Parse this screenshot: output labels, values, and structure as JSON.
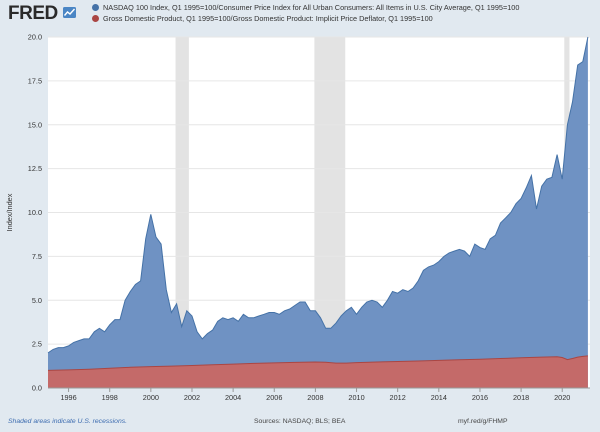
{
  "header": {
    "logo_text": "FRED",
    "logo_mark": "line-chart-icon"
  },
  "legend": [
    {
      "label": "NASDAQ 100 Index, Q1 1995=100/Consumer Price Index for All Urban Consumers: All Items in U.S. City Average, Q1 1995=100",
      "color": "#4572a7"
    },
    {
      "label": "Gross Domestic Product, Q1 1995=100/Gross Domestic Product: Implicit Price Deflator, Q1 1995=100",
      "color": "#aa4643"
    }
  ],
  "footer": {
    "note": "Shaded areas indicate U.S. recessions.",
    "sources": "Sources: NASDAQ; BLS; BEA",
    "url": "myf.red/g/FHMP"
  },
  "chart_data": {
    "type": "area",
    "title": "",
    "xlabel": "",
    "ylabel": "Index/Index",
    "xlim": [
      1995.0,
      2021.35
    ],
    "ylim": [
      0,
      20
    ],
    "yticks": [
      0,
      2.5,
      5,
      7.5,
      10,
      12.5,
      15,
      17.5,
      20
    ],
    "ytick_labels": [
      "0.0",
      "2.5",
      "5.0",
      "7.5",
      "10.0",
      "12.5",
      "15.0",
      "17.5",
      "20.0"
    ],
    "xticks": [
      1996,
      1998,
      2000,
      2002,
      2004,
      2006,
      2008,
      2010,
      2012,
      2014,
      2016,
      2018,
      2020
    ],
    "xtick_labels": [
      "1996",
      "1998",
      "2000",
      "2002",
      "2004",
      "2006",
      "2008",
      "2010",
      "2012",
      "2014",
      "2016",
      "2018",
      "2020"
    ],
    "recessions": [
      [
        2001.2,
        2001.85
      ],
      [
        2007.95,
        2009.45
      ],
      [
        2020.1,
        2020.35
      ]
    ],
    "series": [
      {
        "name": "NASDAQ 100 Index, Q1 1995=100/Consumer Price Index for All Urban Consumers: All Items in U.S. City Average, Q1 1995=100",
        "color": "#4572a7",
        "fill": "#6f92c3",
        "x": [
          1995.0,
          1995.25,
          1995.5,
          1995.75,
          1996.0,
          1996.25,
          1996.5,
          1996.75,
          1997.0,
          1997.25,
          1997.5,
          1997.75,
          1998.0,
          1998.25,
          1998.5,
          1998.75,
          1999.0,
          1999.25,
          1999.5,
          1999.75,
          2000.0,
          2000.25,
          2000.5,
          2000.75,
          2001.0,
          2001.25,
          2001.5,
          2001.75,
          2002.0,
          2002.25,
          2002.5,
          2002.75,
          2003.0,
          2003.25,
          2003.5,
          2003.75,
          2004.0,
          2004.25,
          2004.5,
          2004.75,
          2005.0,
          2005.25,
          2005.5,
          2005.75,
          2006.0,
          2006.25,
          2006.5,
          2006.75,
          2007.0,
          2007.25,
          2007.5,
          2007.75,
          2008.0,
          2008.25,
          2008.5,
          2008.75,
          2009.0,
          2009.25,
          2009.5,
          2009.75,
          2010.0,
          2010.25,
          2010.5,
          2010.75,
          2011.0,
          2011.25,
          2011.5,
          2011.75,
          2012.0,
          2012.25,
          2012.5,
          2012.75,
          2013.0,
          2013.25,
          2013.5,
          2013.75,
          2014.0,
          2014.25,
          2014.5,
          2014.75,
          2015.0,
          2015.25,
          2015.5,
          2015.75,
          2016.0,
          2016.25,
          2016.5,
          2016.75,
          2017.0,
          2017.25,
          2017.5,
          2017.75,
          2018.0,
          2018.25,
          2018.5,
          2018.75,
          2019.0,
          2019.25,
          2019.5,
          2019.75,
          2020.0,
          2020.25,
          2020.5,
          2020.75,
          2021.0,
          2021.25
        ],
        "values": [
          2.0,
          2.2,
          2.3,
          2.3,
          2.4,
          2.6,
          2.7,
          2.8,
          2.8,
          3.2,
          3.4,
          3.2,
          3.6,
          3.9,
          3.9,
          5.0,
          5.5,
          5.9,
          6.1,
          8.5,
          9.9,
          8.6,
          8.2,
          5.6,
          4.3,
          4.8,
          3.5,
          4.4,
          4.1,
          3.2,
          2.8,
          3.1,
          3.3,
          3.8,
          4.0,
          3.9,
          4.0,
          3.8,
          4.2,
          4.0,
          4.0,
          4.1,
          4.2,
          4.3,
          4.3,
          4.2,
          4.4,
          4.5,
          4.7,
          4.9,
          4.9,
          4.4,
          4.4,
          4.0,
          3.4,
          3.4,
          3.7,
          4.1,
          4.4,
          4.6,
          4.2,
          4.6,
          4.9,
          5.0,
          4.9,
          4.6,
          5.0,
          5.5,
          5.4,
          5.6,
          5.5,
          5.7,
          6.1,
          6.7,
          6.9,
          7.0,
          7.2,
          7.5,
          7.7,
          7.8,
          7.9,
          7.8,
          7.5,
          8.2,
          8.0,
          7.9,
          8.5,
          8.7,
          9.4,
          9.7,
          10.0,
          10.5,
          10.8,
          11.4,
          12.1,
          10.2,
          11.5,
          11.9,
          12.0,
          13.3,
          11.9,
          15.0,
          16.3,
          18.4,
          18.6,
          20.0
        ],
        "display_labels": [
          "2.5",
          "5.0",
          "7.5",
          "10.0",
          "12.5",
          "15.0",
          "17.5",
          "20.0"
        ]
      },
      {
        "name": "Gross Domestic Product, Q1 1995=100/Gross Domestic Product: Implicit Price Deflator, Q1 1995=100",
        "color": "#aa4643",
        "fill": "#c46a69",
        "x": [
          1995.0,
          1996.0,
          1997.0,
          1998.0,
          1999.0,
          2000.0,
          2001.0,
          2002.0,
          2003.0,
          2004.0,
          2005.0,
          2006.0,
          2007.0,
          2008.0,
          2008.5,
          2009.0,
          2009.5,
          2010.0,
          2011.0,
          2012.0,
          2013.0,
          2014.0,
          2015.0,
          2016.0,
          2017.0,
          2018.0,
          2019.0,
          2019.75,
          2020.0,
          2020.25,
          2020.5,
          2020.75,
          2021.0,
          2021.25
        ],
        "values": [
          1.0,
          1.03,
          1.07,
          1.13,
          1.18,
          1.22,
          1.25,
          1.28,
          1.32,
          1.36,
          1.4,
          1.43,
          1.46,
          1.48,
          1.47,
          1.42,
          1.42,
          1.45,
          1.48,
          1.51,
          1.54,
          1.57,
          1.61,
          1.64,
          1.68,
          1.72,
          1.76,
          1.78,
          1.74,
          1.62,
          1.68,
          1.76,
          1.8,
          1.83
        ]
      }
    ]
  }
}
